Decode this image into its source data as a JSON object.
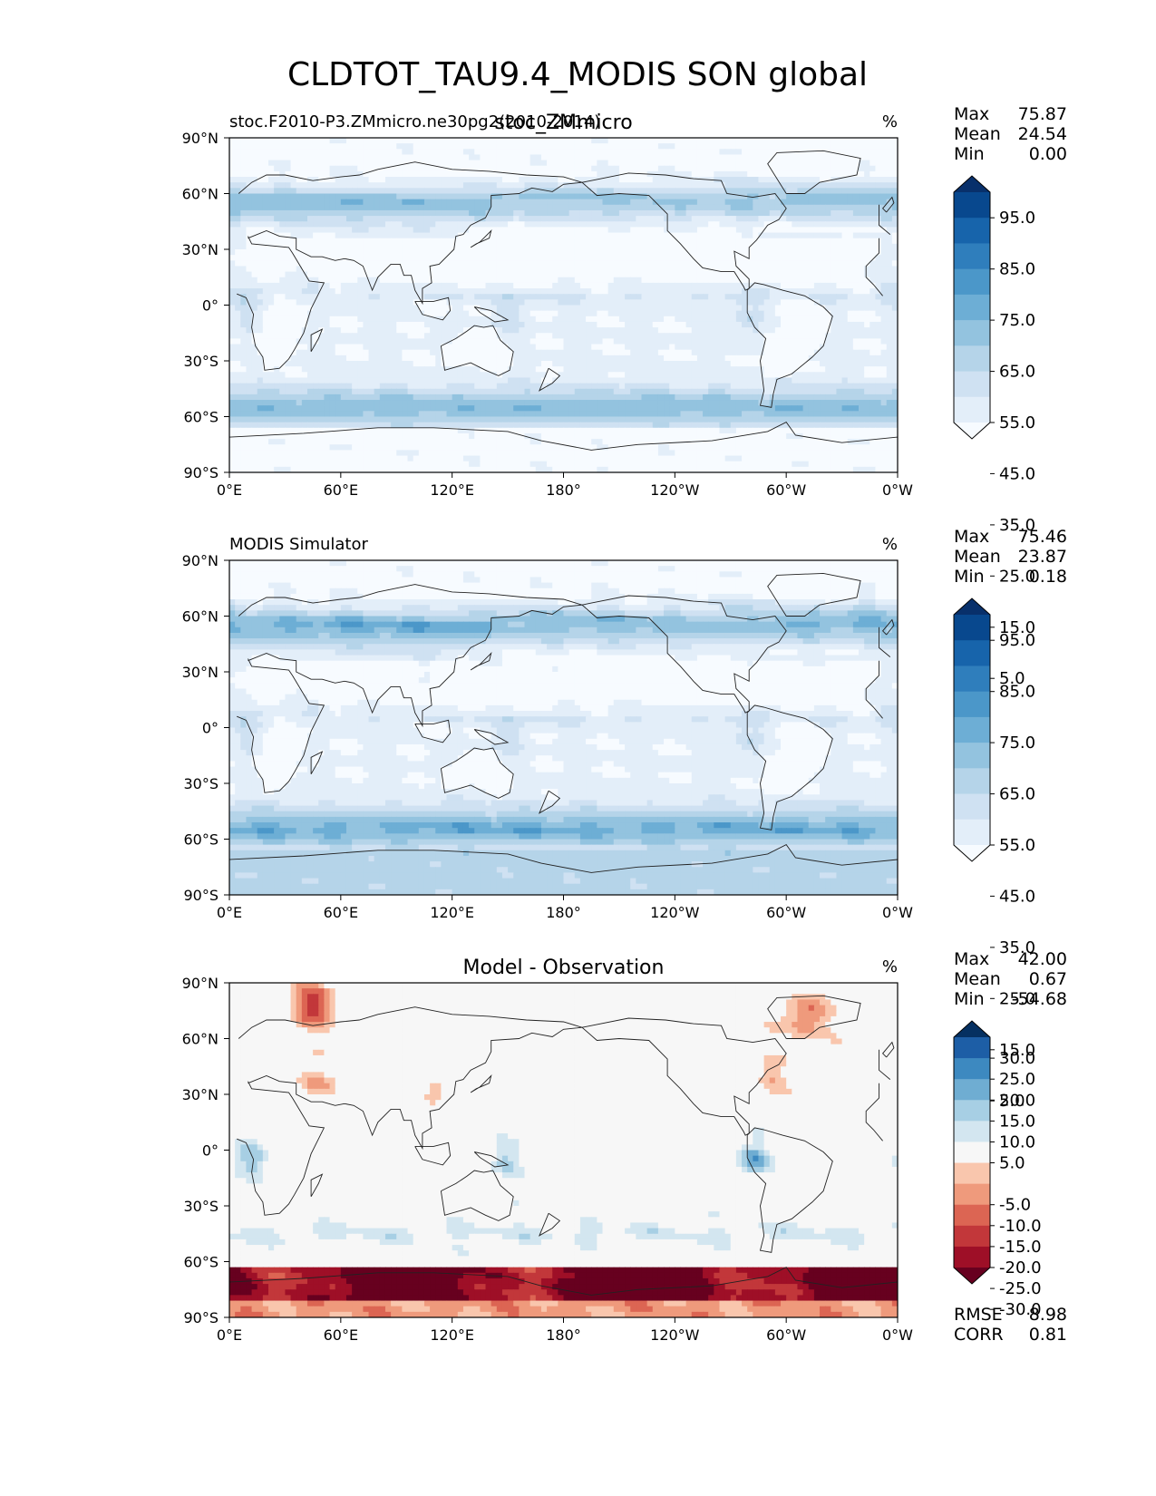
{
  "figure": {
    "title": "CLDTOT_TAU9.4_MODIS SON global"
  },
  "chart_data": [
    {
      "type": "heatmap",
      "panel": "test",
      "left_title": "stoc.F2010-P3.ZMmicro.ne30pg2(2010-2014)",
      "center_title": "stoc_ZMmicro",
      "units": "%",
      "stats": [
        {
          "label": "Max",
          "value": "75.87"
        },
        {
          "label": "Mean",
          "value": "24.54"
        },
        {
          "label": "Min",
          "value": "0.00"
        }
      ],
      "colorbar": {
        "extend": "both",
        "levels": [
          0,
          5,
          10,
          15,
          20,
          25,
          30,
          35,
          40,
          45,
          50,
          55,
          60,
          65,
          70,
          75,
          80,
          85,
          90,
          95,
          100
        ],
        "tick_labels": [
          "95.0",
          "85.0",
          "75.0",
          "65.0",
          "55.0",
          "45.0",
          "35.0",
          "25.0",
          "15.0",
          "5.0"
        ],
        "colors": [
          "#f7fbff",
          "#e3eef9",
          "#cfe1f2",
          "#b5d4e9",
          "#93c3df",
          "#6daed5",
          "#4b97c9",
          "#2f7ebc",
          "#1764ab",
          "#08488e",
          "#08306b"
        ]
      }
    },
    {
      "type": "heatmap",
      "panel": "reference",
      "left_title": "MODIS Simulator",
      "center_title": "",
      "units": "%",
      "stats": [
        {
          "label": "Max",
          "value": "75.46"
        },
        {
          "label": "Mean",
          "value": "23.87"
        },
        {
          "label": "Min",
          "value": "0.18"
        }
      ],
      "colorbar": {
        "extend": "both",
        "levels": [
          0,
          5,
          10,
          15,
          20,
          25,
          30,
          35,
          40,
          45,
          50,
          55,
          60,
          65,
          70,
          75,
          80,
          85,
          90,
          95,
          100
        ],
        "tick_labels": [
          "95.0",
          "85.0",
          "75.0",
          "65.0",
          "55.0",
          "45.0",
          "35.0",
          "25.0",
          "15.0",
          "5.0"
        ],
        "colors": [
          "#f7fbff",
          "#e3eef9",
          "#cfe1f2",
          "#b5d4e9",
          "#93c3df",
          "#6daed5",
          "#4b97c9",
          "#2f7ebc",
          "#1764ab",
          "#08488e",
          "#08306b"
        ]
      }
    },
    {
      "type": "heatmap",
      "panel": "difference",
      "left_title": "",
      "center_title": "Model - Observation",
      "units": "%",
      "stats": [
        {
          "label": "Max",
          "value": "42.00"
        },
        {
          "label": "Mean",
          "value": "0.67"
        },
        {
          "label": "Min",
          "value": "-54.68"
        }
      ],
      "extra_stats": [
        {
          "label": "RMSE",
          "value": "8.98"
        },
        {
          "label": "CORR",
          "value": "0.81"
        }
      ],
      "colorbar": {
        "extend": "both",
        "levels": [
          -35,
          -30,
          -25,
          -20,
          -15,
          -10,
          -5,
          5,
          10,
          15,
          20,
          25,
          30,
          35
        ],
        "tick_labels": [
          "30.0",
          "25.0",
          "20.0",
          "15.0",
          "10.0",
          "5.0",
          "-5.0",
          "-10.0",
          "-15.0",
          "-20.0",
          "-25.0",
          "-30.0"
        ],
        "colors": [
          "#67001f",
          "#9e0f27",
          "#c2373a",
          "#dc6553",
          "#ef9a7c",
          "#f9c6ad",
          "#f7f7f7",
          "#d3e6f0",
          "#a7cfe4",
          "#6fadd2",
          "#3d89c0",
          "#1d5ea6",
          "#053061"
        ]
      }
    }
  ],
  "map_axes": {
    "xticks": [
      "0°E",
      "60°E",
      "120°E",
      "180°",
      "120°W",
      "60°W",
      "0°W"
    ],
    "yticks": [
      "90°N",
      "60°N",
      "30°N",
      "0°",
      "30°S",
      "60°S",
      "90°S"
    ],
    "xlim": [
      0,
      360
    ],
    "ylim": [
      -90,
      90
    ]
  }
}
